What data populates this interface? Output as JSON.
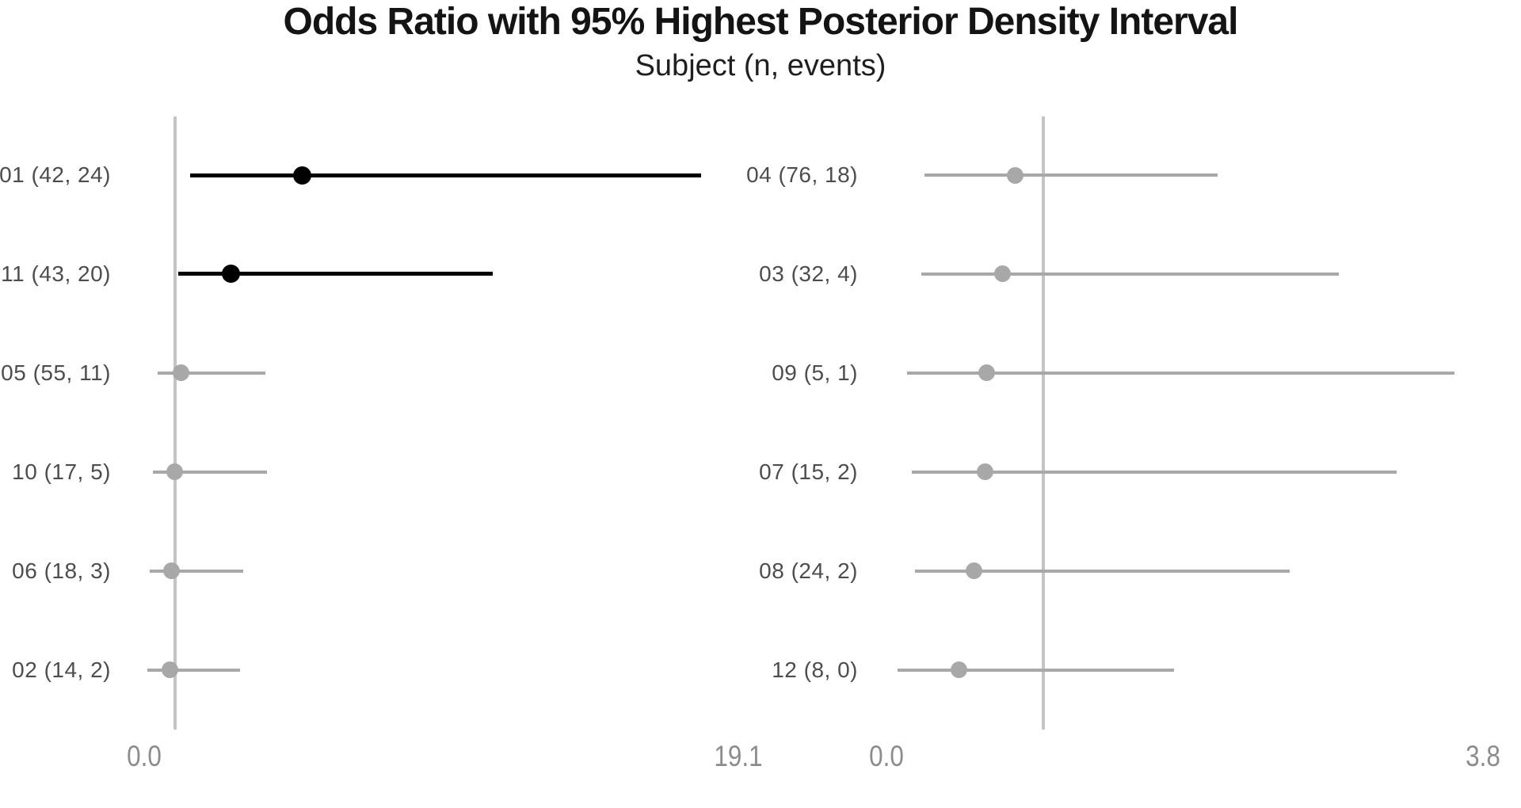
{
  "title": "Odds Ratio with 95% Highest Posterior Density Interval",
  "subtitle": "Subject (n, events)",
  "chart_data": {
    "type": "scatter",
    "subtype": "forest-plot-with-intervals",
    "title": "Odds Ratio with 95% Highest Posterior Density Interval",
    "subtitle": "Subject (n, events)",
    "grid": "off",
    "legend": "none",
    "colors": {
      "emphasis": "#000000",
      "default": "#a8a8a8",
      "reference_line": "#c4c4c4",
      "axis_label": "#8c8c8c",
      "row_label": "#4d4d4d"
    },
    "panels": [
      {
        "side": "left",
        "xlim": [
          0,
          19.1
        ],
        "reference_line_x": 1.0,
        "ticks": [
          {
            "label": "0.0",
            "value": 0.0
          },
          {
            "label": "19.1",
            "value": 19.1
          }
        ],
        "subjects": [
          {
            "label": "01 (42, 24)",
            "n": 42,
            "events": 24,
            "mean": 5.1,
            "lower": 1.5,
            "upper": 17.9,
            "color": "emphasis"
          },
          {
            "label": "11 (43, 20)",
            "n": 43,
            "events": 20,
            "mean": 2.8,
            "lower": 1.1,
            "upper": 11.2,
            "color": "emphasis"
          },
          {
            "label": "05 (55, 11)",
            "n": 55,
            "events": 11,
            "mean": 1.2,
            "lower": 0.45,
            "upper": 3.9,
            "color": "default"
          },
          {
            "label": "10 (17, 5)",
            "n": 17,
            "events": 5,
            "mean": 1.0,
            "lower": 0.3,
            "upper": 3.95,
            "color": "default"
          },
          {
            "label": "06 (18, 3)",
            "n": 18,
            "events": 3,
            "mean": 0.9,
            "lower": 0.2,
            "upper": 3.2,
            "color": "default"
          },
          {
            "label": "02 (14, 2)",
            "n": 14,
            "events": 2,
            "mean": 0.83,
            "lower": 0.12,
            "upper": 3.1,
            "color": "default"
          }
        ]
      },
      {
        "side": "right",
        "xlim": [
          0,
          3.8
        ],
        "reference_line_x": 1.0,
        "ticks": [
          {
            "label": "0.0",
            "value": 0.0
          },
          {
            "label": "3.8",
            "value": 3.8
          }
        ],
        "subjects": [
          {
            "label": "04 (76, 18)",
            "n": 76,
            "events": 18,
            "mean": 0.82,
            "lower": 0.24,
            "upper": 2.11,
            "color": "default"
          },
          {
            "label": "03 (32, 4)",
            "n": 32,
            "events": 4,
            "mean": 0.74,
            "lower": 0.22,
            "upper": 2.88,
            "color": "default"
          },
          {
            "label": "09 (5, 1)",
            "n": 5,
            "events": 1,
            "mean": 0.64,
            "lower": 0.13,
            "upper": 3.62,
            "color": "default"
          },
          {
            "label": "07 (15, 2)",
            "n": 15,
            "events": 2,
            "mean": 0.63,
            "lower": 0.16,
            "upper": 3.25,
            "color": "default"
          },
          {
            "label": "08 (24, 2)",
            "n": 24,
            "events": 2,
            "mean": 0.56,
            "lower": 0.18,
            "upper": 2.57,
            "color": "default"
          },
          {
            "label": "12 (8, 0)",
            "n": 8,
            "events": 0,
            "mean": 0.46,
            "lower": 0.07,
            "upper": 1.83,
            "color": "default"
          }
        ]
      }
    ]
  }
}
